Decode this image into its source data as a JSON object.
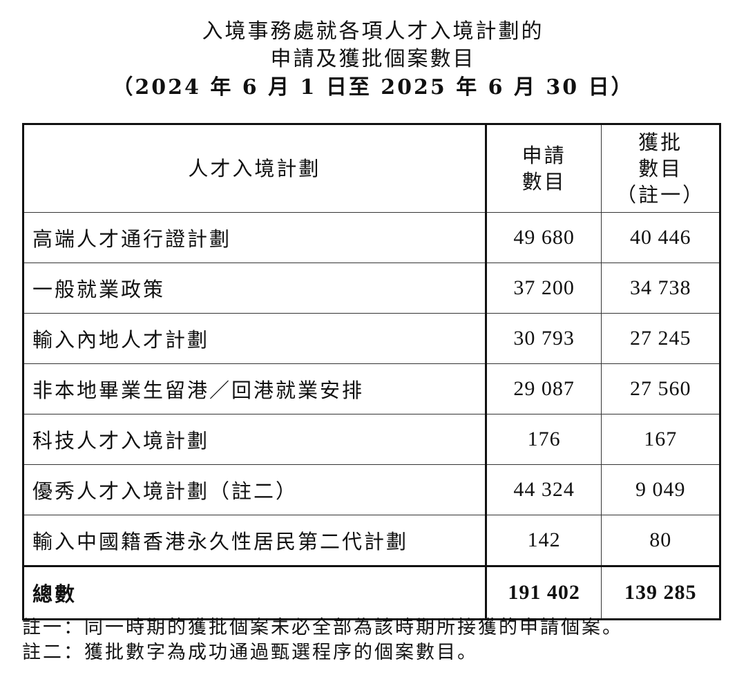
{
  "title": {
    "line1": "入境事務處就各項人才入境計劃的",
    "line2": "申請及獲批個案數目",
    "line3": "（2024 年 6 月 1 日至 2025 年 6 月 30 日）"
  },
  "table": {
    "headers": {
      "scheme": "人才入境計劃",
      "applications_1": "申請",
      "applications_2": "數目",
      "approved_1": "獲批",
      "approved_2": "數目",
      "approved_3": "（註一）"
    },
    "rows": [
      {
        "scheme": "高端人才通行證計劃",
        "applications": "49 680",
        "approved": "40 446"
      },
      {
        "scheme": "一般就業政策",
        "applications": "37 200",
        "approved": "34 738"
      },
      {
        "scheme": "輸入內地人才計劃",
        "applications": "30 793",
        "approved": "27 245"
      },
      {
        "scheme": "非本地畢業生留港／回港就業安排",
        "applications": "29 087",
        "approved": "27 560"
      },
      {
        "scheme": "科技人才入境計劃",
        "applications": "176",
        "approved": "167"
      },
      {
        "scheme": "優秀人才入境計劃（註二）",
        "applications": "44 324",
        "approved": "9 049"
      },
      {
        "scheme": "輸入中國籍香港永久性居民第二代計劃",
        "applications": "142",
        "approved": "80"
      }
    ],
    "total": {
      "label": "總數",
      "applications": "191 402",
      "approved": "139 285"
    }
  },
  "notes": [
    "註一：同一時期的獲批個案未必全部為該時期所接獲的申請個案。",
    "註二：獲批數字為成功通過甄選程序的個案數目。"
  ]
}
